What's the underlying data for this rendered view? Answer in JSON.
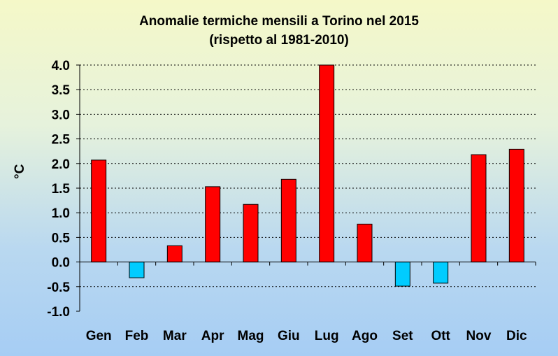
{
  "chart_data": {
    "type": "bar",
    "title": "Anomalie termiche mensili a Torino nel 2015",
    "subtitle": "(rispetto al 1981-2010)",
    "ylabel": "°C",
    "xlabel": "",
    "categories": [
      "Gen",
      "Feb",
      "Mar",
      "Apr",
      "Mag",
      "Giu",
      "Lug",
      "Ago",
      "Set",
      "Ott",
      "Nov",
      "Dic"
    ],
    "values": [
      2.07,
      -0.32,
      0.33,
      1.53,
      1.17,
      1.68,
      4.0,
      0.77,
      -0.49,
      -0.43,
      2.18,
      2.29
    ],
    "ylim": [
      -1.0,
      4.0
    ],
    "yticks": [
      "4.0",
      "3.5",
      "3.0",
      "2.5",
      "2.0",
      "1.5",
      "1.0",
      "0.5",
      "0.0",
      "-0.5",
      "-1.0"
    ],
    "grid": true,
    "colors": {
      "positive": "#ff0000",
      "negative": "#00ccff",
      "outline": "#000000",
      "grid": "#000000"
    }
  }
}
